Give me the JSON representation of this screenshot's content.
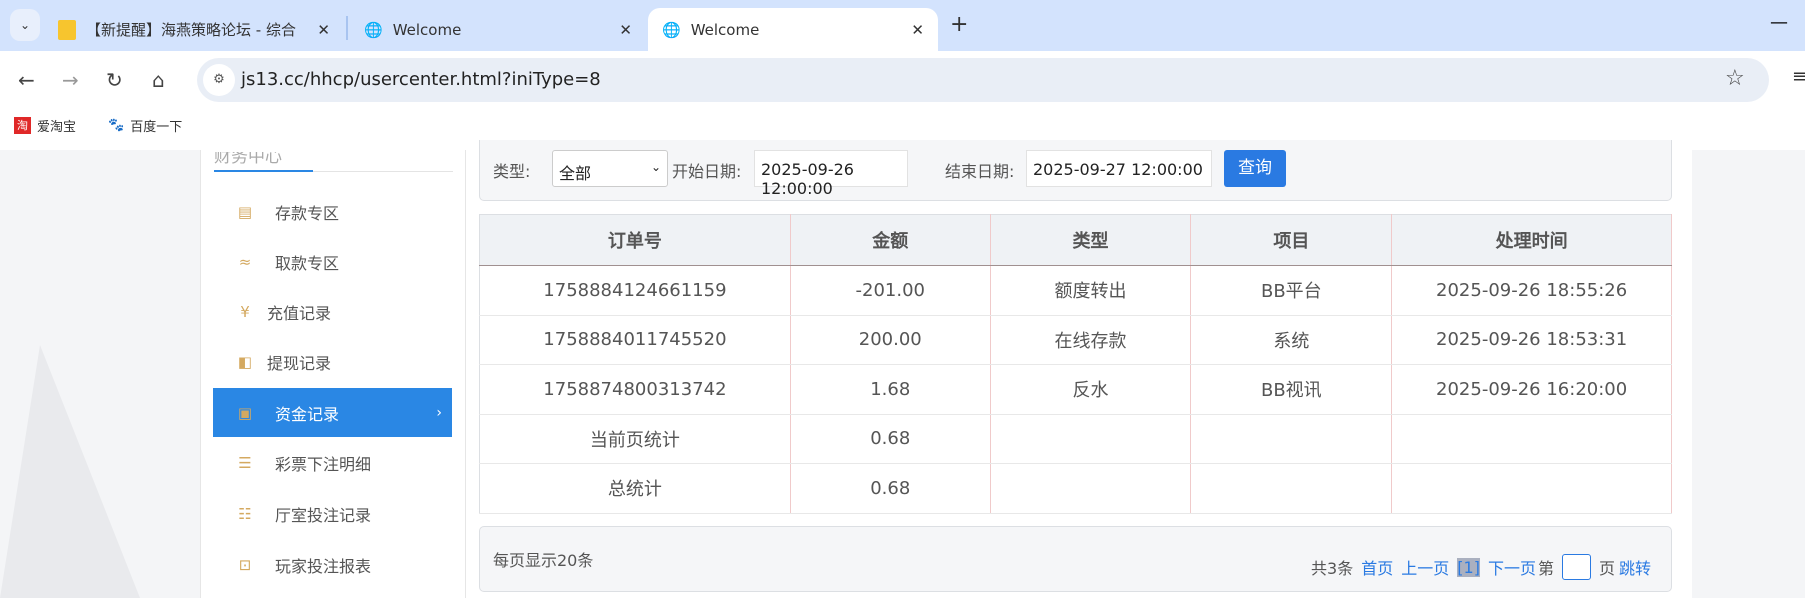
{
  "browser": {
    "tabs": [
      {
        "title": "【新提醒】海燕策略论坛 - 综合",
        "icon": "note-icon"
      },
      {
        "title": "Welcome",
        "icon": "globe-icon"
      },
      {
        "title": "Welcome",
        "icon": "globe-icon",
        "active": true
      }
    ],
    "url": "js13.cc/hhcp/usercenter.html?iniType=8",
    "bookmarks": [
      "爱淘宝",
      "百度一下"
    ]
  },
  "sidebar": {
    "title": "财务中心",
    "items": [
      {
        "label": "存款专区",
        "icon": "card-icon"
      },
      {
        "label": "取款专区",
        "icon": "hand-icon"
      },
      {
        "label": "充值记录",
        "icon": "moneybag-icon"
      },
      {
        "label": "提现记录",
        "icon": "wallet-icon"
      },
      {
        "label": "资金记录",
        "icon": "cash-icon",
        "active": true
      },
      {
        "label": "彩票下注明细",
        "icon": "list-icon"
      },
      {
        "label": "厅室投注记录",
        "icon": "checklist-icon"
      },
      {
        "label": "玩家投注报表",
        "icon": "chart-icon"
      }
    ]
  },
  "filter": {
    "type_label": "类型:",
    "type_value": "全部",
    "start_label": "开始日期:",
    "start_value": "2025-09-26 12:00:00",
    "end_label": "结束日期:",
    "end_value": "2025-09-27 12:00:00",
    "query": "查询"
  },
  "table": {
    "headers": [
      "订单号",
      "金额",
      "类型",
      "项目",
      "处理时间"
    ],
    "rows": [
      [
        "1758884124661159",
        "-201.00",
        "额度转出",
        "BB平台",
        "2025-09-26 18:55:26"
      ],
      [
        "1758884011745520",
        "200.00",
        "在线存款",
        "系统",
        "2025-09-26 18:53:31"
      ],
      [
        "1758874800313742",
        "1.68",
        "反水",
        "BB视讯",
        "2025-09-26 16:20:00"
      ]
    ],
    "page_total": {
      "label": "当前页统计",
      "value": "0.68"
    },
    "total": {
      "label": "总统计",
      "value": "0.68"
    }
  },
  "pager": {
    "per_page": "每页显示20条",
    "count": "共3条",
    "first": "首页",
    "prev": "上一页",
    "current": "[1]",
    "next": "下一页",
    "goto_prefix": "第",
    "goto_suffix": "页",
    "jump": "跳转"
  },
  "colors": {
    "accent": "#2a87e4",
    "button": "#2a7ae2",
    "icon": "#d4a960"
  }
}
